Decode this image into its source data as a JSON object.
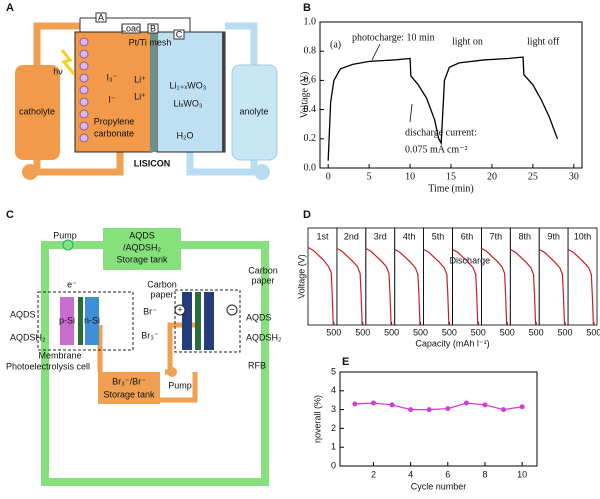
{
  "panels": {
    "a": "A",
    "b": "B",
    "c": "C",
    "d": "D",
    "e": "E"
  },
  "diagram_a": {
    "catholyte": "catholyte",
    "anolyte": "anolyte",
    "light": "hν",
    "meter_a": "A",
    "load": "Load",
    "meter_b": "B",
    "mesh": "Pt/Ti mesh",
    "meter_c": "C",
    "triiodide": "I₃⁻",
    "iodide": "I⁻",
    "li_top": "Li⁺",
    "li_bottom": "Li⁺",
    "wo3_top": "Li₁₊ₓWO₃",
    "wo3_bottom": "LiₓWO₃",
    "solvent_1": "Propylene",
    "solvent_2": "carbonate",
    "water": "H₂O",
    "membrane": "LISICON"
  },
  "diagram_c": {
    "pump_top": "Pump",
    "tank_top_1": "AQDS",
    "tank_top_2": "/AQDSH₂",
    "tank_top_3": "Storage tank",
    "electron": "e⁻",
    "aqds_left": "AQDS",
    "aqdsh2_left": "AQDSH₂",
    "p_si": "p-Si",
    "n_si": "n-Si",
    "bromide": "Br⁻",
    "tribromide": "Br₃⁻",
    "membrane": "Membrane",
    "cell": "Photoelectrolysis cell",
    "carbon_1a": "Carbon",
    "carbon_1b": "paper",
    "carbon_2a": "Carbon",
    "carbon_2b": "paper",
    "plus": "+",
    "minus": "−",
    "aqds_right": "AQDS",
    "aqdsh2_right": "AQDSH₂",
    "rfb": "RFB",
    "tank_bottom_1": "Br₃⁻/Br⁻",
    "tank_bottom_2": "Storage tank",
    "pump_bottom": "Pump"
  },
  "chart_data": [
    {
      "type": "line",
      "color": "#000000",
      "xlabel": "Time (min)",
      "ylabel": "Voltage (V)",
      "annotations": [
        "(a)",
        "photocharge: 10 min",
        "light on",
        "light off",
        "discharge current:",
        "0.075 mA cm⁻²"
      ],
      "x": [
        0,
        0.3,
        0.7,
        1.5,
        3,
        5,
        8,
        10,
        10.1,
        11,
        12,
        13,
        13.5,
        13.8,
        14.2,
        14.8,
        16,
        19,
        22,
        23.8,
        23.9,
        25,
        26,
        27,
        28
      ],
      "values": [
        0.05,
        0.45,
        0.6,
        0.68,
        0.71,
        0.73,
        0.74,
        0.75,
        0.63,
        0.57,
        0.48,
        0.33,
        0.2,
        0.17,
        0.6,
        0.69,
        0.72,
        0.74,
        0.75,
        0.76,
        0.64,
        0.57,
        0.47,
        0.35,
        0.2
      ],
      "xlim": [
        -1,
        31
      ],
      "xticks": [
        0,
        5,
        10,
        15,
        20,
        25,
        30
      ],
      "ylim": [
        0,
        1
      ],
      "yticks": [
        {
          "value": 0,
          "label": "0.0"
        },
        0.2,
        0.4,
        0.6,
        0.8,
        {
          "value": 1,
          "label": "1.0"
        }
      ]
    },
    {
      "type": "cycles",
      "color": "#c8201e",
      "xlabel": "Capacity (mAh l⁻¹)",
      "ylabel": "Voltage (V)",
      "annotation": "Discharge",
      "categories": [
        "1st",
        "2nd",
        "3rd",
        "4th",
        "5th",
        "6th",
        "7th",
        "8th",
        "9th",
        "10th"
      ],
      "x": [
        0,
        100,
        200,
        300,
        400,
        450,
        470,
        490
      ],
      "series": [
        {
          "values": [
            0.8,
            0.77,
            0.72,
            0.67,
            0.6,
            0.54,
            0.3,
            0.0
          ]
        },
        {
          "values": [
            0.79,
            0.76,
            0.71,
            0.66,
            0.6,
            0.53,
            0.3,
            0.0
          ]
        },
        {
          "values": [
            0.79,
            0.76,
            0.71,
            0.66,
            0.6,
            0.53,
            0.3,
            0.0
          ]
        },
        {
          "values": [
            0.78,
            0.75,
            0.7,
            0.65,
            0.59,
            0.52,
            0.3,
            0.0
          ]
        },
        {
          "values": [
            0.78,
            0.75,
            0.7,
            0.65,
            0.59,
            0.52,
            0.3,
            0.0
          ]
        },
        {
          "values": [
            0.78,
            0.75,
            0.7,
            0.65,
            0.59,
            0.52,
            0.3,
            0.0
          ]
        },
        {
          "values": [
            0.79,
            0.76,
            0.71,
            0.66,
            0.6,
            0.53,
            0.3,
            0.0
          ]
        },
        {
          "values": [
            0.78,
            0.75,
            0.7,
            0.65,
            0.59,
            0.52,
            0.3,
            0.0
          ]
        },
        {
          "values": [
            0.78,
            0.75,
            0.7,
            0.65,
            0.59,
            0.52,
            0.3,
            0.0
          ]
        },
        {
          "values": [
            0.78,
            0.75,
            0.7,
            0.65,
            0.59,
            0.52,
            0.3,
            0.0
          ]
        }
      ],
      "xlim": [
        0,
        560
      ],
      "xticks": [
        500
      ],
      "ylim": [
        0,
        1
      ]
    },
    {
      "type": "line",
      "color": "#d63bd6",
      "xlabel": "Cycle number",
      "ylabel": "ηoverall (%)",
      "markers": true,
      "x": [
        1,
        2,
        3,
        4,
        5,
        6,
        7,
        8,
        9,
        10
      ],
      "values": [
        3.3,
        3.35,
        3.25,
        3.0,
        3.0,
        3.05,
        3.35,
        3.25,
        3.0,
        3.15
      ],
      "xlim": [
        0.2,
        10.8
      ],
      "xticks": [
        2,
        4,
        6,
        8,
        10
      ],
      "ylim": [
        0,
        5
      ],
      "yticks": [
        0,
        1,
        2,
        3,
        4,
        5
      ]
    }
  ]
}
